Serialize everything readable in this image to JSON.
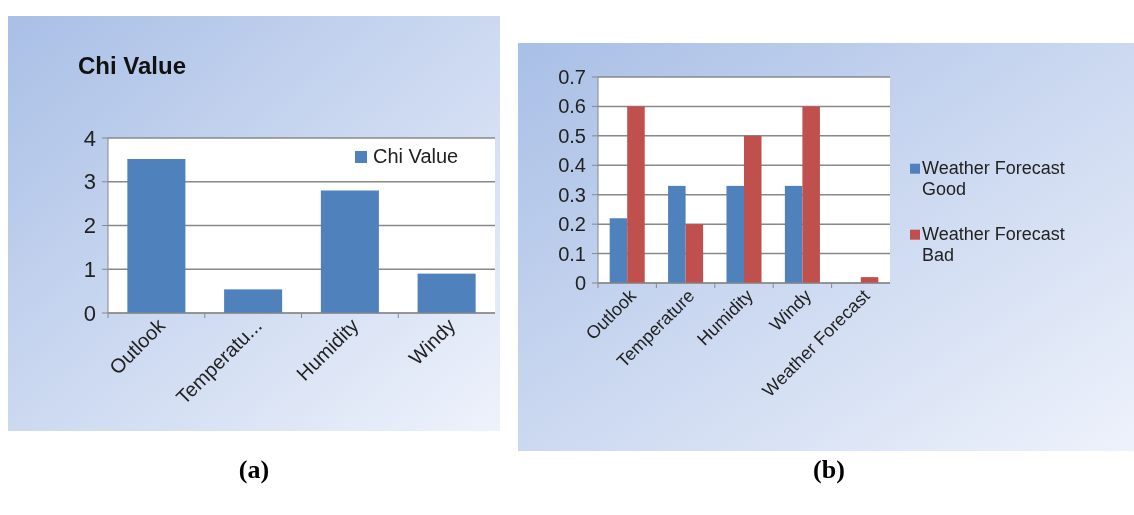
{
  "chart_data": [
    {
      "type": "bar",
      "title": "Chi Value",
      "categories": [
        "Outlook",
        "Temperatu...",
        "Humidity",
        "Windy"
      ],
      "series": [
        {
          "name": "Chi Value",
          "color": "#4f81bd",
          "values": [
            3.52,
            0.54,
            2.8,
            0.9
          ]
        }
      ],
      "ylim": [
        0,
        4
      ],
      "yticks": [
        0,
        1,
        2,
        3,
        4
      ],
      "grid": "y",
      "legend": "top right",
      "annotations": [
        "(a)"
      ]
    },
    {
      "type": "bar",
      "categories": [
        "Outlook",
        "Temperature",
        "Humidity",
        "Windy",
        "Weather Forecast"
      ],
      "series": [
        {
          "name": "Weather Forecast Good",
          "color": "#4f81bd",
          "values": [
            0.22,
            0.33,
            0.33,
            0.33,
            0
          ]
        },
        {
          "name": "Weather Forecast Bad",
          "color": "#c0504d",
          "values": [
            0.6,
            0.2,
            0.5,
            0.6,
            0.02
          ]
        }
      ],
      "ylim": [
        0,
        0.7
      ],
      "yticks": [
        0,
        0.1,
        0.2,
        0.3,
        0.4,
        0.5,
        0.6,
        0.7
      ],
      "grid": "y",
      "legend": "right",
      "annotations": [
        "(b)"
      ]
    }
  ]
}
